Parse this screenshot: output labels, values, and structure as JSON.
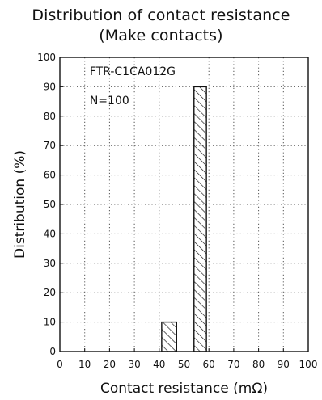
{
  "chart_data": {
    "type": "bar",
    "title": "Distribution of contact resistance",
    "subtitle": "(Make contacts)",
    "annotation_lines": [
      "FTR-C1CA012G",
      "N=100"
    ],
    "xlabel": "Contact resistance (mΩ)",
    "ylabel": "Distribution (%)",
    "xlim": [
      0,
      100
    ],
    "ylim": [
      0,
      100
    ],
    "xticks": [
      0,
      10,
      20,
      30,
      40,
      50,
      60,
      70,
      80,
      90,
      100
    ],
    "yticks": [
      0,
      10,
      20,
      30,
      40,
      50,
      60,
      70,
      80,
      90,
      100
    ],
    "grid": "dotted",
    "bars": [
      {
        "x_start": 41,
        "x_end": 47,
        "value": 10
      },
      {
        "x_start": 54,
        "x_end": 59,
        "value": 90
      }
    ],
    "bar_fill": "diagonal-hatch"
  }
}
